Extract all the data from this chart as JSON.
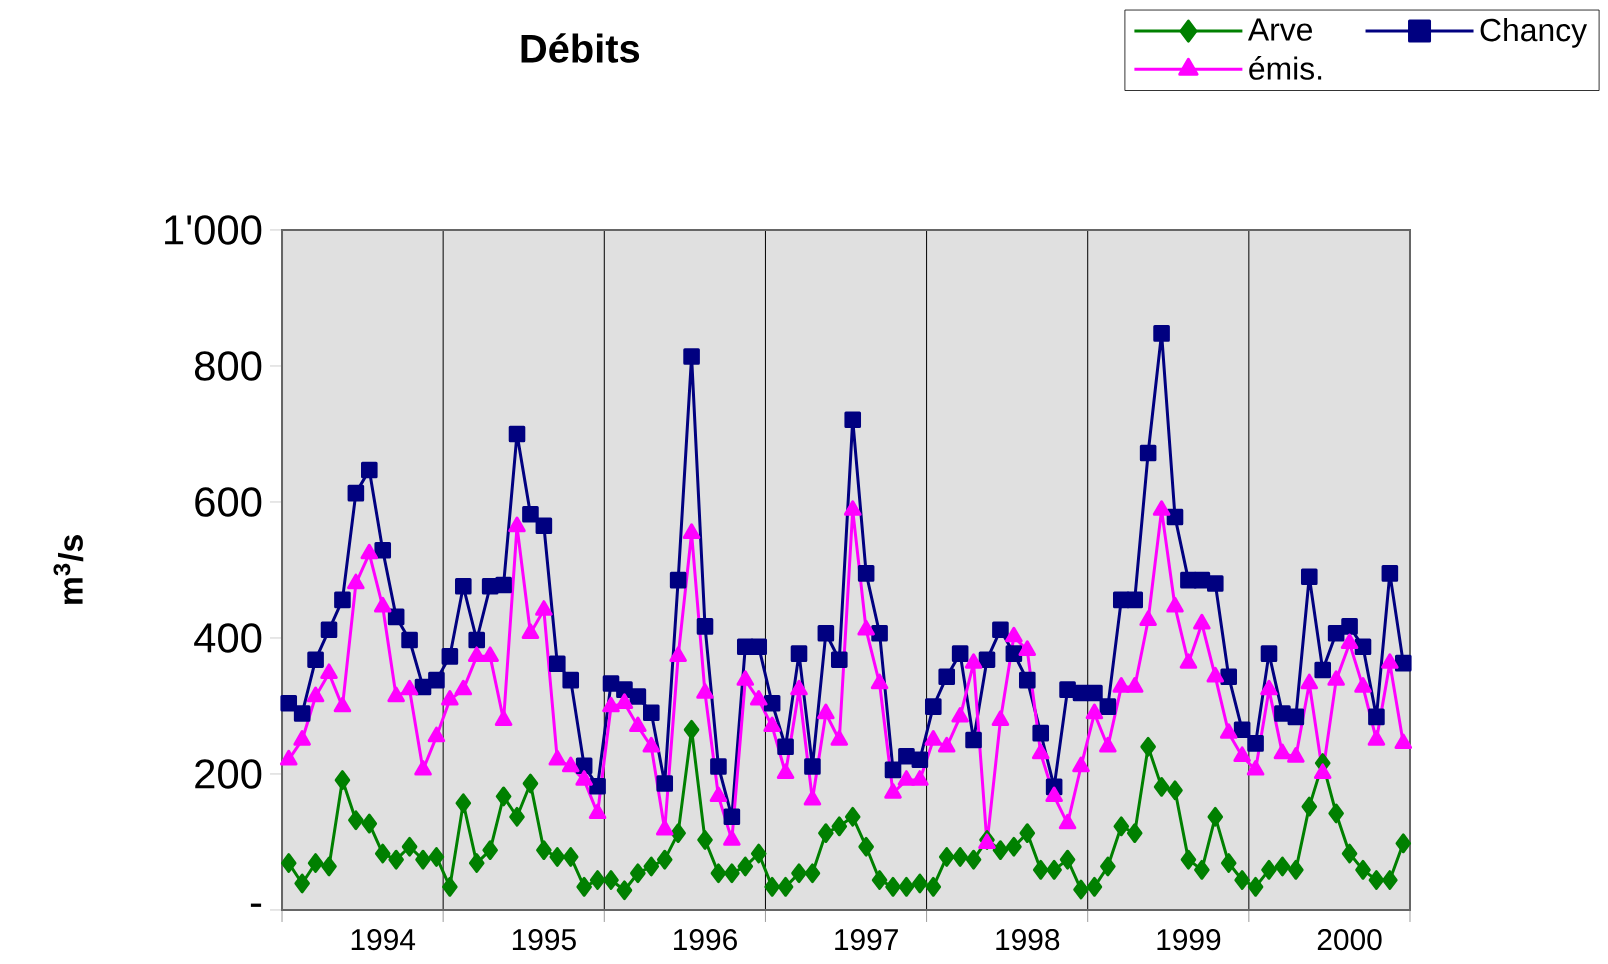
{
  "chart_data": {
    "type": "line",
    "title": "Débits",
    "ylabel": "m$^{3}$/s",
    "categories": [
      null,
      null,
      null,
      null,
      null,
      null,
      null,
      "1994",
      null,
      null,
      null,
      null,
      null,
      null,
      null,
      null,
      null,
      null,
      null,
      "1995",
      null,
      null,
      null,
      null,
      null,
      null,
      null,
      null,
      null,
      null,
      null,
      "1996",
      null,
      null,
      null,
      null,
      null,
      null,
      null,
      null,
      null,
      null,
      null,
      "1997",
      null,
      null,
      null,
      null,
      null,
      null,
      null,
      null,
      null,
      null,
      null,
      "1998",
      null,
      null,
      null,
      null,
      null,
      null,
      null,
      null,
      null,
      null,
      null,
      "1999",
      null,
      null,
      null,
      null,
      null,
      null,
      null,
      null,
      null,
      null,
      null,
      "2000",
      null,
      null,
      null,
      null
    ],
    "series": [
      {
        "name": "Arve",
        "color": "#008000",
        "marker": "diamond",
        "values": [
          69,
          39,
          69,
          64,
          191,
          132,
          127,
          83,
          74,
          93,
          74,
          78,
          34,
          157,
          69,
          88,
          167,
          137,
          186,
          88,
          78,
          78,
          34,
          44,
          44,
          29,
          54,
          64,
          74,
          113,
          265,
          103,
          54,
          54,
          64,
          83,
          34,
          34,
          54,
          54,
          113,
          123,
          137,
          93,
          44,
          34,
          34,
          39,
          34,
          78,
          78,
          74,
          103,
          88,
          93,
          113,
          59,
          59,
          74,
          30,
          34,
          64,
          123,
          113,
          240,
          181,
          176,
          74,
          59,
          137,
          69,
          44,
          34,
          59,
          64,
          59,
          152,
          216,
          142,
          83,
          59,
          44,
          44,
          98
        ]
      },
      {
        "name": "Chancy",
        "color": "#000080",
        "marker": "square",
        "values": [
          304,
          289,
          368,
          412,
          456,
          613,
          647,
          529,
          431,
          397,
          328,
          338,
          373,
          476,
          397,
          476,
          478,
          700,
          582,
          565,
          362,
          338,
          212,
          182,
          333,
          324,
          314,
          290,
          186,
          485,
          814,
          417,
          211,
          137,
          387,
          387,
          304,
          240,
          377,
          211,
          407,
          368,
          721,
          495,
          407,
          206,
          226,
          221,
          299,
          343,
          377,
          250,
          368,
          412,
          377,
          338,
          260,
          181,
          324,
          319,
          319,
          299,
          456,
          456,
          672,
          848,
          578,
          485,
          485,
          480,
          343,
          265,
          245,
          377,
          289,
          284,
          490,
          353,
          407,
          417,
          387,
          284,
          495,
          363
        ]
      },
      {
        "name": "émis.",
        "color": "#ff00ff",
        "marker": "triangle",
        "values": [
          221,
          250,
          314,
          348,
          299,
          480,
          524,
          446,
          314,
          324,
          206,
          255,
          309,
          324,
          373,
          373,
          279,
          564,
          407,
          441,
          221,
          211,
          191,
          142,
          299,
          304,
          270,
          240,
          118,
          373,
          554,
          319,
          167,
          103,
          338,
          309,
          270,
          201,
          324,
          162,
          289,
          250,
          588,
          412,
          333,
          172,
          191,
          191,
          250,
          240,
          284,
          363,
          98,
          279,
          402,
          382,
          230,
          167,
          127,
          211,
          289,
          240,
          328,
          328,
          426,
          588,
          446,
          363,
          421,
          343,
          260,
          226,
          206,
          324,
          230,
          225,
          333,
          201,
          338,
          392,
          328,
          250,
          363,
          245
        ]
      }
    ],
    "ylim": [
      0,
      1000
    ],
    "yticks": [
      {
        "value": 0,
        "label": "-"
      },
      200,
      400,
      600,
      800,
      {
        "value": 1000,
        "label": "1'000"
      }
    ],
    "grid": "x",
    "legend": "top right",
    "line_style": "solid"
  }
}
